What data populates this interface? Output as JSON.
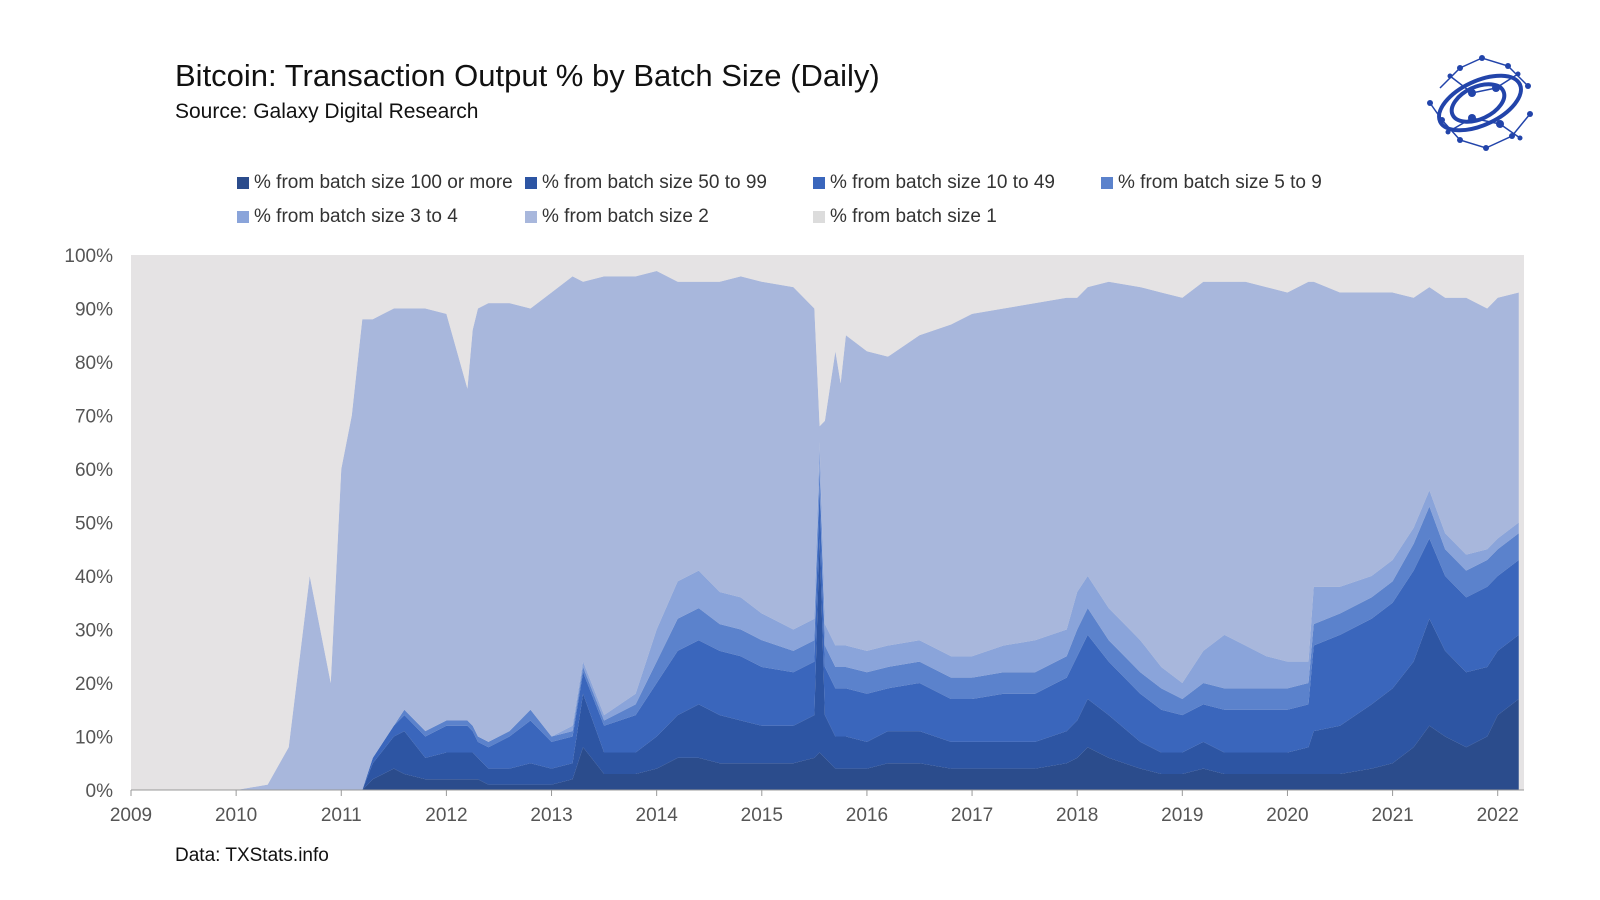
{
  "header": {
    "title": "Bitcoin: Transaction Output % by Batch Size (Daily)",
    "subtitle": "Source: Galaxy Digital Research"
  },
  "footer": {
    "text": "Data: TXStats.info"
  },
  "logo": {
    "icon": "galaxy-orbit-logo-icon",
    "color": "#2244aa"
  },
  "chart_data": {
    "type": "area",
    "stacked": true,
    "normalized_percent": true,
    "x_unit": "year",
    "xlim": [
      2009,
      2022.25
    ],
    "ylim": [
      0,
      100
    ],
    "x_ticks": [
      "2009",
      "2010",
      "2011",
      "2012",
      "2013",
      "2014",
      "2015",
      "2016",
      "2017",
      "2018",
      "2019",
      "2020",
      "2021",
      "2022"
    ],
    "y_ticks": [
      "0%",
      "10%",
      "20%",
      "30%",
      "40%",
      "50%",
      "60%",
      "70%",
      "80%",
      "90%",
      "100%"
    ],
    "grid": false,
    "legend_position": "top",
    "background_color": "#e5e3e4",
    "x": [
      2009.0,
      2010.0,
      2010.3,
      2010.5,
      2010.7,
      2010.9,
      2011.0,
      2011.1,
      2011.2,
      2011.3,
      2011.5,
      2011.6,
      2011.8,
      2012.0,
      2012.2,
      2012.25,
      2012.3,
      2012.4,
      2012.6,
      2012.8,
      2013.0,
      2013.2,
      2013.3,
      2013.5,
      2013.8,
      2014.0,
      2014.2,
      2014.4,
      2014.6,
      2014.8,
      2015.0,
      2015.3,
      2015.5,
      2015.55,
      2015.6,
      2015.7,
      2015.75,
      2015.8,
      2016.0,
      2016.2,
      2016.5,
      2016.8,
      2017.0,
      2017.3,
      2017.6,
      2017.9,
      2018.0,
      2018.1,
      2018.3,
      2018.6,
      2018.8,
      2019.0,
      2019.2,
      2019.4,
      2019.6,
      2019.8,
      2020.0,
      2020.2,
      2020.25,
      2020.5,
      2020.8,
      2021.0,
      2021.2,
      2021.35,
      2021.5,
      2021.7,
      2021.9,
      2022.0,
      2022.2
    ],
    "series": [
      {
        "name": "% from batch size 100 or more",
        "color": "#2b4c8c",
        "values": [
          0,
          0,
          0,
          0,
          0,
          0,
          0,
          0,
          0,
          2,
          4,
          3,
          2,
          2,
          2,
          2,
          2,
          1,
          1,
          1,
          1,
          2,
          8,
          3,
          3,
          4,
          6,
          6,
          5,
          5,
          5,
          5,
          6,
          7,
          6,
          4,
          4,
          4,
          4,
          5,
          5,
          4,
          4,
          4,
          4,
          5,
          6,
          8,
          6,
          4,
          3,
          3,
          4,
          3,
          3,
          3,
          3,
          3,
          3,
          3,
          4,
          5,
          8,
          12,
          10,
          8,
          10,
          14,
          17
        ]
      },
      {
        "name": "% from batch size 50 to 99",
        "color": "#2d55a3",
        "values": [
          0,
          0,
          0,
          0,
          0,
          0,
          0,
          0,
          0,
          3,
          6,
          8,
          4,
          5,
          5,
          5,
          4,
          3,
          3,
          4,
          3,
          3,
          10,
          4,
          4,
          6,
          8,
          10,
          9,
          8,
          7,
          7,
          8,
          40,
          8,
          6,
          6,
          6,
          5,
          6,
          6,
          5,
          5,
          5,
          5,
          6,
          7,
          9,
          8,
          5,
          4,
          4,
          5,
          4,
          4,
          4,
          4,
          5,
          8,
          9,
          12,
          14,
          16,
          20,
          16,
          14,
          13,
          12,
          12
        ]
      },
      {
        "name": "% from batch size 10 to 49",
        "color": "#3a66bc",
        "values": [
          0,
          0,
          0,
          0,
          0,
          0,
          0,
          0,
          0,
          1,
          2,
          3,
          4,
          5,
          5,
          4,
          3,
          4,
          6,
          8,
          5,
          5,
          4,
          5,
          7,
          10,
          12,
          12,
          12,
          12,
          11,
          10,
          10,
          10,
          9,
          9,
          9,
          9,
          9,
          8,
          9,
          8,
          8,
          9,
          9,
          10,
          12,
          12,
          10,
          9,
          8,
          7,
          7,
          8,
          8,
          8,
          8,
          8,
          16,
          17,
          16,
          16,
          17,
          15,
          14,
          14,
          15,
          14,
          14
        ]
      },
      {
        "name": "% from batch size 5 to 9",
        "color": "#5b82cc",
        "values": [
          0,
          0,
          0,
          0,
          0,
          0,
          0,
          0,
          0,
          0,
          0,
          1,
          1,
          1,
          1,
          1,
          1,
          1,
          1,
          2,
          1,
          1,
          1,
          1,
          2,
          4,
          6,
          6,
          5,
          5,
          5,
          4,
          4,
          4,
          4,
          4,
          4,
          4,
          4,
          4,
          4,
          4,
          4,
          4,
          4,
          4,
          5,
          5,
          4,
          4,
          4,
          3,
          4,
          4,
          4,
          4,
          4,
          4,
          4,
          4,
          4,
          4,
          5,
          6,
          5,
          5,
          5,
          5,
          5
        ]
      },
      {
        "name": "% from batch size 3 to 4",
        "color": "#8aa4da",
        "values": [
          0,
          0,
          0,
          0,
          0,
          0,
          0,
          0,
          0,
          0,
          0,
          0,
          0,
          0,
          0,
          0,
          0,
          0,
          0,
          0,
          0,
          1,
          1,
          1,
          2,
          6,
          7,
          7,
          6,
          6,
          5,
          4,
          4,
          4,
          4,
          4,
          4,
          4,
          4,
          4,
          4,
          4,
          4,
          5,
          6,
          5,
          7,
          6,
          6,
          6,
          4,
          3,
          6,
          10,
          8,
          6,
          5,
          4,
          7,
          5,
          4,
          4,
          3,
          3,
          3,
          3,
          2,
          2,
          2
        ]
      },
      {
        "name": "% from batch size 2",
        "color": "#a8b7dc",
        "values": [
          0,
          0,
          1,
          8,
          40,
          20,
          60,
          70,
          88,
          82,
          78,
          75,
          79,
          76,
          62,
          74,
          80,
          82,
          80,
          75,
          83,
          84,
          71,
          82,
          78,
          67,
          56,
          54,
          58,
          60,
          62,
          64,
          58,
          3,
          38,
          55,
          49,
          58,
          56,
          54,
          57,
          62,
          64,
          63,
          63,
          62,
          55,
          54,
          61,
          66,
          70,
          72,
          69,
          66,
          68,
          69,
          69,
          71,
          57,
          55,
          53,
          50,
          43,
          38,
          44,
          48,
          45,
          45,
          43
        ]
      },
      {
        "name": "% from batch size 1",
        "color": "#e5e3e4",
        "values": [
          100,
          100,
          99,
          92,
          60,
          80,
          40,
          30,
          12,
          12,
          10,
          10,
          10,
          11,
          25,
          14,
          10,
          9,
          9,
          10,
          7,
          4,
          5,
          4,
          4,
          3,
          5,
          5,
          5,
          4,
          5,
          6,
          10,
          32,
          31,
          18,
          24,
          15,
          18,
          19,
          15,
          13,
          11,
          10,
          9,
          8,
          8,
          6,
          5,
          6,
          7,
          8,
          5,
          5,
          5,
          6,
          7,
          5,
          5,
          7,
          7,
          7,
          8,
          6,
          8,
          8,
          10,
          8,
          7
        ]
      }
    ]
  }
}
